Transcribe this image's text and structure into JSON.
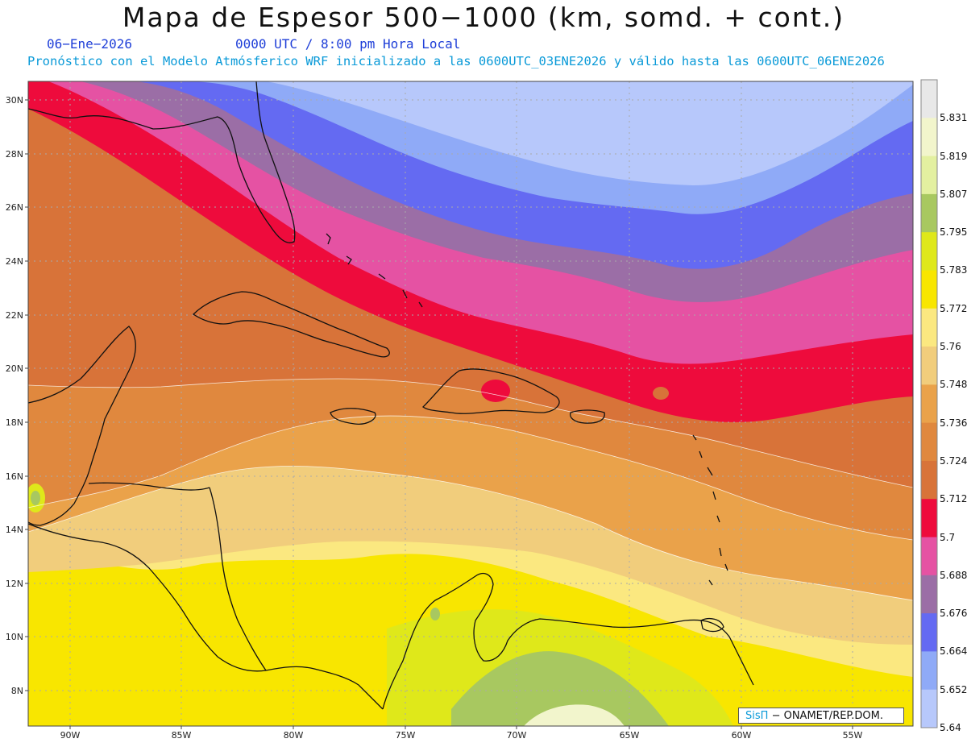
{
  "header": {
    "title": "Mapa de Espesor 500−1000 (km, somd. + cont.)",
    "date": "06−Ene−2026",
    "time": "0000 UTC / 8:00 pm Hora Local",
    "info": "Pronóstico con el Modelo Atmósferico WRF inicializado a las 0600UTC_03ENE2026 y válido hasta las  0600UTC_06ENE2026"
  },
  "map": {
    "lat_labels": [
      "30N",
      "28N",
      "26N",
      "24N",
      "22N",
      "20N",
      "18N",
      "16N",
      "14N",
      "12N",
      "10N",
      "8N"
    ],
    "lon_labels": [
      "90W",
      "85W",
      "80W",
      "75W",
      "70W",
      "65W",
      "60W",
      "55W"
    ],
    "credit_brand": "SisΠ",
    "credit_text": "− ONAMET/REP.DOM."
  },
  "colorbar": {
    "labels": [
      "5.831",
      "5.819",
      "5.807",
      "5.795",
      "5.783",
      "5.772",
      "5.76",
      "5.748",
      "5.736",
      "5.724",
      "5.712",
      "5.7",
      "5.688",
      "5.676",
      "5.664",
      "5.652",
      "5.64"
    ],
    "colors": [
      "#e8e8e8",
      "#f2f5cc",
      "#e3f0a0",
      "#a8c860",
      "#dfe81a",
      "#f8e600",
      "#fbe880",
      "#f1cd7c",
      "#eaa24a",
      "#e0883e",
      "#d87339",
      "#ee0b3c",
      "#e552a3",
      "#9b6ea6",
      "#646af2",
      "#8faaf7",
      "#b7c8fb"
    ]
  },
  "colors": {
    "coast": "#111111",
    "grid": "#aaaaaa"
  }
}
